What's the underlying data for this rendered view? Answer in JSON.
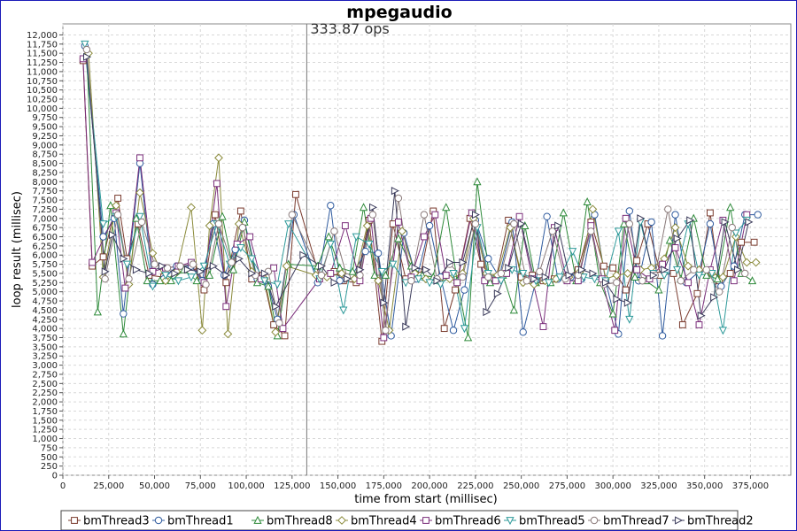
{
  "chart_data": {
    "type": "line",
    "title": "mpegaudio",
    "marker_label": "333.87 ops",
    "marker_x": 133000,
    "xlabel": "time from start (millisec)",
    "ylabel": "loop result (millisec)",
    "xlim": [
      0,
      397000
    ],
    "ylim": [
      0,
      12300
    ],
    "xticks": [
      0,
      25000,
      50000,
      75000,
      100000,
      125000,
      150000,
      175000,
      200000,
      225000,
      250000,
      275000,
      300000,
      325000,
      350000,
      375000
    ],
    "xtick_labels": [
      "0",
      "25,000",
      "50,000",
      "75,000",
      "100,000",
      "125,000",
      "150,000",
      "175,000",
      "200,000",
      "225,000",
      "250,000",
      "275,000",
      "300,000",
      "325,000",
      "350,000",
      "375,000"
    ],
    "yticks": [
      0,
      250,
      500,
      750,
      1000,
      1250,
      1500,
      1750,
      2000,
      2250,
      2500,
      2750,
      3000,
      3250,
      3500,
      3750,
      4000,
      4250,
      4500,
      4750,
      5000,
      5250,
      5500,
      5750,
      6000,
      6250,
      6500,
      6750,
      7000,
      7250,
      7500,
      7750,
      8000,
      8250,
      8500,
      8750,
      9000,
      9250,
      9500,
      9750,
      10000,
      10250,
      10500,
      10750,
      11000,
      11250,
      11500,
      11750,
      12000
    ],
    "ytick_labels": [
      "0",
      "250",
      "500",
      "750",
      "1,000",
      "1,250",
      "1,500",
      "1,750",
      "2,000",
      "2,250",
      "2,500",
      "2,750",
      "3,000",
      "3,250",
      "3,500",
      "3,750",
      "4,000",
      "4,250",
      "4,500",
      "4,750",
      "5,000",
      "5,250",
      "5,500",
      "5,750",
      "6,000",
      "6,250",
      "6,500",
      "6,750",
      "7,000",
      "7,250",
      "7,500",
      "7,750",
      "8,000",
      "8,250",
      "8,500",
      "8,750",
      "9,000",
      "9,250",
      "9,500",
      "9,750",
      "10,000",
      "10,250",
      "10,500",
      "10,750",
      "11,000",
      "11,250",
      "11,500",
      "11,750",
      "12,000"
    ],
    "grid": true,
    "legend_position": "bottom",
    "series": [
      {
        "name": "bmThread3",
        "color": "#7a3b2e",
        "marker": "square",
        "x": [
          11000,
          16000,
          22000,
          30000,
          35000,
          41000,
          47000,
          55000,
          63000,
          71000,
          77000,
          83000,
          89000,
          97000,
          103000,
          109000,
          115000,
          121000,
          127000,
          140000,
          148000,
          153000,
          160000,
          167000,
          174000,
          180000,
          187000,
          195000,
          202000,
          208000,
          214000,
          222000,
          228000,
          236000,
          243000,
          250000,
          256000,
          262000,
          268000,
          275000,
          281000,
          288000,
          295000,
          300000,
          307000,
          313000,
          319000,
          326000,
          333000,
          338000,
          346000,
          353000,
          358000,
          364000,
          370000,
          377000
        ],
        "y": [
          11300,
          5700,
          5950,
          7550,
          5900,
          6850,
          5450,
          5400,
          5700,
          5700,
          5050,
          7100,
          5250,
          7200,
          5350,
          5450,
          4100,
          3800,
          7650,
          5400,
          5550,
          5300,
          5250,
          6950,
          3650,
          6850,
          5350,
          5450,
          7200,
          4000,
          5050,
          7000,
          5750,
          5300,
          6950,
          5400,
          5450,
          5300,
          5350,
          5400,
          5600,
          6900,
          5700,
          5650,
          5050,
          5850,
          6850,
          5450,
          5500,
          4100,
          4950,
          7150,
          5300,
          5500,
          6350,
          6350
        ]
      },
      {
        "name": "bmThread1",
        "color": "#2e5a9e",
        "marker": "circle",
        "x": [
          12000,
          22000,
          28000,
          33000,
          42000,
          49000,
          55000,
          62000,
          70000,
          76000,
          82000,
          88000,
          94000,
          99000,
          106000,
          112000,
          117000,
          126000,
          139000,
          146000,
          151000,
          158000,
          165000,
          172000,
          179000,
          186000,
          193000,
          200000,
          206000,
          213000,
          219000,
          225000,
          232000,
          238000,
          245000,
          251000,
          258000,
          264000,
          270000,
          277000,
          283000,
          290000,
          296000,
          303000,
          309000,
          314000,
          321000,
          327000,
          334000,
          340000,
          347000,
          353000,
          359000,
          366000,
          372000,
          379000
        ],
        "y": [
          11700,
          6500,
          7000,
          4400,
          8500,
          5200,
          5350,
          5700,
          5700,
          5300,
          6850,
          5450,
          6150,
          6950,
          5350,
          5150,
          4250,
          7100,
          5250,
          7350,
          5300,
          5450,
          6100,
          6050,
          3800,
          6600,
          5350,
          6800,
          5400,
          3950,
          5050,
          6950,
          5900,
          5400,
          6900,
          3900,
          5300,
          7050,
          5350,
          5400,
          5350,
          7100,
          5300,
          3850,
          7200,
          5300,
          6900,
          3800,
          7100,
          5250,
          5550,
          6850,
          5150,
          5700,
          7100,
          7100
        ]
      },
      {
        "name": "bmThread8",
        "color": "#2e8a3a",
        "marker": "triangle-up",
        "x": [
          13000,
          19000,
          26000,
          33000,
          40000,
          46000,
          53000,
          59000,
          66000,
          73000,
          80000,
          87000,
          93000,
          99000,
          106000,
          112000,
          117000,
          123000,
          139000,
          145000,
          151000,
          158000,
          164000,
          170000,
          176000,
          183000,
          190000,
          196000,
          202000,
          209000,
          215000,
          221000,
          226000,
          233000,
          240000,
          246000,
          252000,
          258000,
          266000,
          273000,
          280000,
          286000,
          293000,
          300000,
          306000,
          312000,
          318000,
          325000,
          331000,
          337000,
          344000,
          351000,
          357000,
          364000,
          370000,
          376000
        ],
        "y": [
          11500,
          4450,
          7350,
          3850,
          7000,
          5300,
          5300,
          5300,
          5600,
          5300,
          5450,
          7050,
          5600,
          6900,
          5250,
          5150,
          3800,
          5750,
          5700,
          6500,
          5650,
          5550,
          7300,
          5450,
          5450,
          6450,
          5700,
          5450,
          5400,
          7300,
          5300,
          3750,
          8000,
          5250,
          5450,
          4500,
          6800,
          5250,
          5250,
          7150,
          5300,
          7450,
          5250,
          4400,
          6850,
          5400,
          5300,
          5050,
          6400,
          5350,
          7000,
          5450,
          5350,
          7300,
          5500,
          5300
        ]
      },
      {
        "name": "bmThread4",
        "color": "#8a8a3a",
        "marker": "diamond",
        "x": [
          14000,
          22000,
          29000,
          36000,
          42000,
          49000,
          56000,
          62000,
          70000,
          76000,
          80000,
          85000,
          90000,
          96000,
          103000,
          110000,
          116000,
          122000,
          138000,
          144000,
          152000,
          159000,
          166000,
          172000,
          178000,
          185000,
          192000,
          198000,
          205000,
          211000,
          218000,
          224000,
          231000,
          237000,
          244000,
          251000,
          257000,
          263000,
          269000,
          276000,
          282000,
          289000,
          296000,
          302000,
          308000,
          315000,
          321000,
          328000,
          334000,
          341000,
          347000,
          354000,
          360000,
          367000,
          373000,
          378000
        ],
        "y": [
          11500,
          5400,
          7350,
          5200,
          7700,
          6050,
          5300,
          5550,
          7300,
          3950,
          6800,
          8650,
          3850,
          6850,
          5550,
          5350,
          3900,
          5700,
          5450,
          5400,
          5500,
          5350,
          6800,
          5300,
          3950,
          6650,
          5500,
          5350,
          5300,
          5350,
          5500,
          7000,
          5500,
          5450,
          6750,
          5250,
          5200,
          5300,
          5350,
          5400,
          5550,
          7250,
          5350,
          5450,
          5500,
          5600,
          5650,
          5900,
          6750,
          5700,
          5600,
          5500,
          5400,
          6500,
          5800,
          5800
        ]
      },
      {
        "name": "bmThread6",
        "color": "#7a2e7a",
        "marker": "square",
        "x": [
          11000,
          16000,
          29000,
          34000,
          42000,
          49000,
          56000,
          63000,
          70000,
          77000,
          84000,
          89000,
          95000,
          102000,
          108000,
          115000,
          120000,
          140000,
          146000,
          154000,
          162000,
          168000,
          175000,
          183000,
          190000,
          197000,
          203000,
          209000,
          215000,
          223000,
          230000,
          236000,
          242000,
          249000,
          256000,
          262000,
          268000,
          275000,
          281000,
          288000,
          294000,
          301000,
          307000,
          313000,
          320000,
          327000,
          334000,
          341000,
          347000,
          353000,
          360000,
          366000,
          373000
        ],
        "y": [
          11350,
          5800,
          7150,
          5100,
          8650,
          5550,
          5650,
          5700,
          5800,
          5250,
          7950,
          4600,
          6300,
          6500,
          5350,
          5650,
          4000,
          5350,
          5500,
          6800,
          5300,
          7000,
          3750,
          6900,
          5400,
          6500,
          7100,
          5450,
          5250,
          7150,
          5300,
          5300,
          5500,
          7050,
          5350,
          4050,
          6750,
          5300,
          5300,
          6800,
          5350,
          3950,
          7000,
          5600,
          5350,
          5750,
          6200,
          5250,
          4100,
          5600,
          6950,
          5300,
          7100
        ]
      },
      {
        "name": "bmThread5",
        "color": "#2e9a9a",
        "marker": "triangle-down",
        "x": [
          12000,
          22000,
          29000,
          35000,
          42000,
          49000,
          56000,
          63000,
          70000,
          77000,
          84000,
          91000,
          97000,
          103000,
          110000,
          117000,
          123000,
          140000,
          146000,
          153000,
          160000,
          167000,
          174000,
          180000,
          187000,
          194000,
          200000,
          206000,
          213000,
          219000,
          226000,
          232000,
          239000,
          245000,
          251000,
          258000,
          265000,
          271000,
          278000,
          284000,
          290000,
          296000,
          303000,
          309000,
          315000,
          322000,
          328000,
          335000,
          341000,
          347000,
          354000,
          360000,
          367000,
          373000
        ],
        "y": [
          11750,
          6850,
          7050,
          5750,
          7050,
          5150,
          5450,
          5300,
          5400,
          5700,
          6850,
          5750,
          6200,
          5900,
          5300,
          5200,
          6850,
          5350,
          6300,
          4500,
          6500,
          6300,
          5550,
          5750,
          5250,
          5350,
          5250,
          5200,
          5500,
          4000,
          6750,
          5500,
          5300,
          5600,
          5500,
          5300,
          5250,
          5400,
          6100,
          5400,
          5350,
          5300,
          6650,
          4250,
          6900,
          5500,
          5450,
          5600,
          6850,
          5450,
          5500,
          3950,
          6600,
          6950
        ]
      },
      {
        "name": "bmThread7",
        "color": "#8a7a7a",
        "marker": "circle",
        "x": [
          13000,
          23000,
          30000,
          36000,
          43000,
          50000,
          57000,
          64000,
          71000,
          78000,
          85000,
          92000,
          98000,
          105000,
          112000,
          118000,
          125000,
          141000,
          148000,
          155000,
          162000,
          169000,
          176000,
          183000,
          190000,
          197000,
          204000,
          211000,
          218000,
          225000,
          232000,
          239000,
          246000,
          253000,
          260000,
          267000,
          274000,
          281000,
          288000,
          295000,
          302000,
          309000,
          316000,
          323000,
          330000,
          337000,
          344000,
          351000,
          358000,
          365000,
          372000
        ],
        "y": [
          11600,
          5350,
          7100,
          5350,
          6900,
          5750,
          5650,
          5700,
          5750,
          5200,
          6850,
          5800,
          6750,
          5450,
          5550,
          4150,
          7100,
          5450,
          6650,
          5400,
          5450,
          7100,
          3950,
          7550,
          5300,
          7100,
          5350,
          5750,
          5400,
          6850,
          5400,
          5500,
          6850,
          5300,
          5550,
          6650,
          5350,
          5450,
          6650,
          5200,
          5250,
          6850,
          5300,
          5450,
          7250,
          5300,
          5600,
          5600,
          5000,
          6750,
          5500
        ]
      },
      {
        "name": "bmThread2",
        "color": "#3a3a5a",
        "marker": "triangle-right",
        "x": [
          13000,
          23000,
          27000,
          33000,
          40000,
          47000,
          54000,
          61000,
          68000,
          75000,
          82000,
          89000,
          96000,
          103000,
          110000,
          116000,
          131000,
          141000,
          148000,
          155000,
          162000,
          169000,
          175000,
          181000,
          187000,
          192000,
          198000,
          204000,
          211000,
          218000,
          225000,
          231000,
          237000,
          243000,
          250000,
          257000,
          263000,
          270000,
          276000,
          283000,
          289000,
          296000,
          302000,
          308000,
          315000,
          322000,
          328000,
          335000,
          342000,
          348000,
          355000,
          361000,
          368000,
          374000
        ],
        "y": [
          11400,
          5550,
          6550,
          5900,
          5600,
          5500,
          5700,
          5500,
          5600,
          5550,
          5700,
          5450,
          5900,
          5500,
          5500,
          4600,
          6000,
          5700,
          5250,
          5350,
          5600,
          7300,
          4700,
          7750,
          4050,
          5650,
          5600,
          5300,
          5800,
          5800,
          7100,
          4450,
          4950,
          5650,
          6850,
          5350,
          5400,
          6800,
          5450,
          5600,
          5500,
          5250,
          4800,
          4700,
          7000,
          5450,
          5600,
          6450,
          6950,
          4350,
          4850,
          6900,
          5600,
          6900
        ]
      }
    ]
  },
  "legend": {
    "items": [
      "bmThread3",
      "bmThread1",
      "bmThread8",
      "bmThread4",
      "bmThread6",
      "bmThread5",
      "bmThread7",
      "bmThread2"
    ]
  }
}
